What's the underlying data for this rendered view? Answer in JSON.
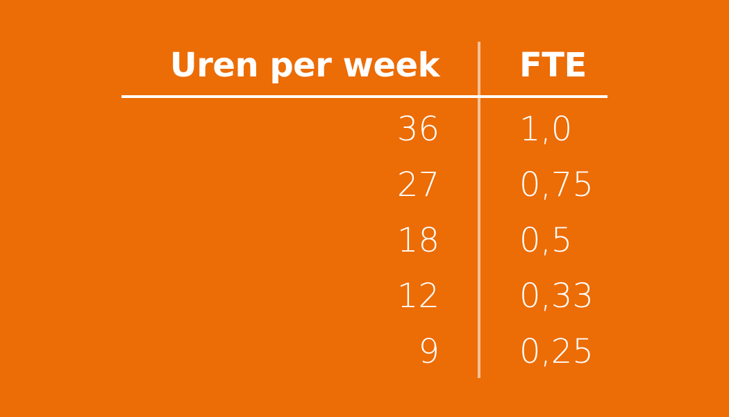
{
  "table": {
    "headers": [
      "Uren per week",
      "FTE"
    ],
    "rows": [
      [
        "36",
        "1,0"
      ],
      [
        "27",
        "0,75"
      ],
      [
        "18",
        "0,5"
      ],
      [
        "12",
        "0,33"
      ],
      [
        "9",
        "0,25"
      ]
    ]
  }
}
